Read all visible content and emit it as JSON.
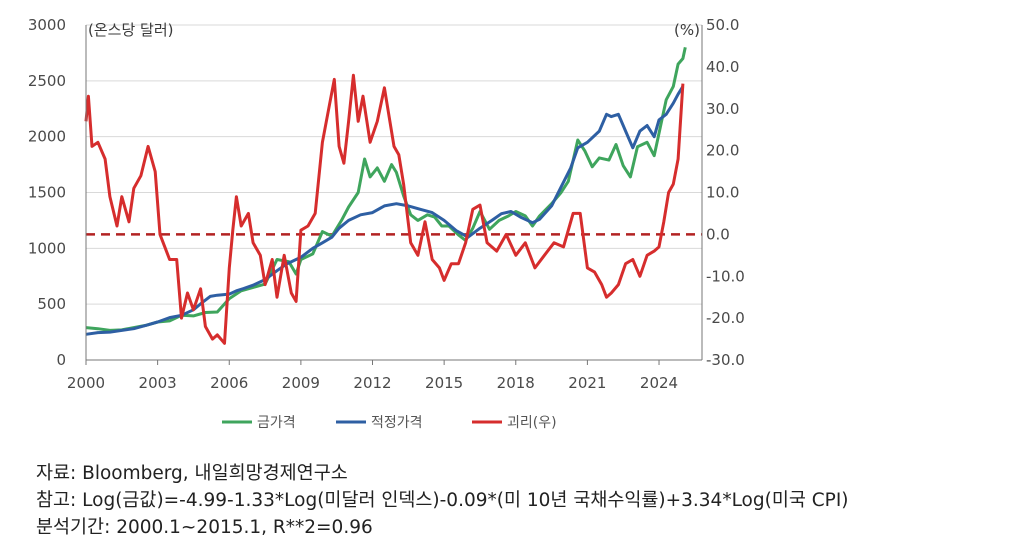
{
  "chart_data": {
    "type": "line",
    "title": "",
    "y_unit_left": "(온스당 달러)",
    "y_unit_right": "(%)",
    "x_ticks": [
      "2000",
      "2003",
      "2006",
      "2009",
      "2012",
      "2015",
      "2018",
      "2021",
      "2024"
    ],
    "y_left_ticks": [
      "0",
      "500",
      "1000",
      "1500",
      "2000",
      "2500",
      "3000"
    ],
    "y_right_ticks": [
      "-30.0",
      "-20.0",
      "-10.0",
      "0.0",
      "10.0",
      "20.0",
      "30.0",
      "40.0",
      "50.0"
    ],
    "xlim": [
      2000,
      2025.8
    ],
    "ylim_left": [
      0,
      3000
    ],
    "ylim_right": [
      -30,
      50
    ],
    "grid": "horizontal",
    "legend_position": "bottom",
    "reference_line": {
      "axis": "right",
      "value": 0.0,
      "style": "dashed",
      "color": "#b22222"
    },
    "series": [
      {
        "name": "금가격",
        "axis": "left",
        "color": "#3fa55d",
        "points": [
          [
            2000.0,
            290
          ],
          [
            2000.5,
            280
          ],
          [
            2001.0,
            265
          ],
          [
            2001.5,
            270
          ],
          [
            2002.0,
            290
          ],
          [
            2002.5,
            310
          ],
          [
            2003.0,
            340
          ],
          [
            2003.5,
            350
          ],
          [
            2004.0,
            400
          ],
          [
            2004.5,
            395
          ],
          [
            2005.0,
            425
          ],
          [
            2005.5,
            430
          ],
          [
            2006.0,
            550
          ],
          [
            2006.5,
            620
          ],
          [
            2007.0,
            650
          ],
          [
            2007.5,
            680
          ],
          [
            2008.0,
            900
          ],
          [
            2008.5,
            880
          ],
          [
            2008.8,
            770
          ],
          [
            2009.0,
            900
          ],
          [
            2009.5,
            950
          ],
          [
            2009.9,
            1150
          ],
          [
            2010.3,
            1110
          ],
          [
            2010.7,
            1250
          ],
          [
            2011.0,
            1370
          ],
          [
            2011.4,
            1500
          ],
          [
            2011.67,
            1800
          ],
          [
            2011.9,
            1640
          ],
          [
            2012.2,
            1720
          ],
          [
            2012.5,
            1600
          ],
          [
            2012.8,
            1750
          ],
          [
            2013.0,
            1680
          ],
          [
            2013.3,
            1470
          ],
          [
            2013.6,
            1300
          ],
          [
            2013.9,
            1250
          ],
          [
            2014.3,
            1300
          ],
          [
            2014.6,
            1280
          ],
          [
            2014.9,
            1200
          ],
          [
            2015.2,
            1200
          ],
          [
            2015.6,
            1120
          ],
          [
            2015.9,
            1070
          ],
          [
            2016.2,
            1180
          ],
          [
            2016.5,
            1330
          ],
          [
            2016.9,
            1170
          ],
          [
            2017.3,
            1250
          ],
          [
            2017.7,
            1290
          ],
          [
            2018.0,
            1330
          ],
          [
            2018.4,
            1290
          ],
          [
            2018.7,
            1200
          ],
          [
            2019.0,
            1290
          ],
          [
            2019.5,
            1400
          ],
          [
            2019.9,
            1500
          ],
          [
            2020.2,
            1600
          ],
          [
            2020.6,
            1970
          ],
          [
            2020.9,
            1870
          ],
          [
            2021.2,
            1730
          ],
          [
            2021.5,
            1810
          ],
          [
            2021.9,
            1790
          ],
          [
            2022.2,
            1930
          ],
          [
            2022.5,
            1740
          ],
          [
            2022.8,
            1640
          ],
          [
            2023.1,
            1910
          ],
          [
            2023.5,
            1950
          ],
          [
            2023.8,
            1830
          ],
          [
            2024.0,
            2030
          ],
          [
            2024.3,
            2330
          ],
          [
            2024.6,
            2450
          ],
          [
            2024.8,
            2650
          ],
          [
            2025.0,
            2700
          ],
          [
            2025.1,
            2800
          ]
        ]
      },
      {
        "name": "적정가격",
        "axis": "left",
        "color": "#2e5fa3",
        "points": [
          [
            2000.0,
            230
          ],
          [
            2000.5,
            245
          ],
          [
            2001.0,
            250
          ],
          [
            2001.5,
            265
          ],
          [
            2002.0,
            280
          ],
          [
            2002.5,
            310
          ],
          [
            2003.0,
            340
          ],
          [
            2003.5,
            380
          ],
          [
            2004.0,
            400
          ],
          [
            2004.5,
            450
          ],
          [
            2004.9,
            520
          ],
          [
            2005.2,
            570
          ],
          [
            2005.5,
            580
          ],
          [
            2006.0,
            590
          ],
          [
            2006.3,
            620
          ],
          [
            2006.6,
            640
          ],
          [
            2007.0,
            670
          ],
          [
            2007.5,
            720
          ],
          [
            2008.0,
            800
          ],
          [
            2008.4,
            860
          ],
          [
            2008.8,
            900
          ],
          [
            2009.0,
            920
          ],
          [
            2009.5,
            1000
          ],
          [
            2009.9,
            1050
          ],
          [
            2010.3,
            1100
          ],
          [
            2010.6,
            1180
          ],
          [
            2011.0,
            1250
          ],
          [
            2011.5,
            1300
          ],
          [
            2012.0,
            1320
          ],
          [
            2012.5,
            1380
          ],
          [
            2013.0,
            1400
          ],
          [
            2013.5,
            1380
          ],
          [
            2014.0,
            1350
          ],
          [
            2014.5,
            1320
          ],
          [
            2015.0,
            1250
          ],
          [
            2015.5,
            1160
          ],
          [
            2016.0,
            1100
          ],
          [
            2016.5,
            1180
          ],
          [
            2017.0,
            1250
          ],
          [
            2017.4,
            1310
          ],
          [
            2017.8,
            1330
          ],
          [
            2018.2,
            1280
          ],
          [
            2018.7,
            1230
          ],
          [
            2019.0,
            1260
          ],
          [
            2019.5,
            1380
          ],
          [
            2019.9,
            1550
          ],
          [
            2020.3,
            1720
          ],
          [
            2020.6,
            1900
          ],
          [
            2021.0,
            1950
          ],
          [
            2021.5,
            2050
          ],
          [
            2021.8,
            2200
          ],
          [
            2022.0,
            2180
          ],
          [
            2022.3,
            2200
          ],
          [
            2022.6,
            2050
          ],
          [
            2022.9,
            1900
          ],
          [
            2023.2,
            2050
          ],
          [
            2023.5,
            2100
          ],
          [
            2023.8,
            2000
          ],
          [
            2024.0,
            2150
          ],
          [
            2024.3,
            2200
          ],
          [
            2024.6,
            2300
          ],
          [
            2024.8,
            2380
          ],
          [
            2025.0,
            2450
          ]
        ]
      },
      {
        "name": "괴리(우)",
        "axis": "right",
        "color": "#d62d2d",
        "points": [
          [
            2000.0,
            27
          ],
          [
            2000.1,
            33
          ],
          [
            2000.25,
            21
          ],
          [
            2000.5,
            22
          ],
          [
            2000.8,
            18
          ],
          [
            2001.0,
            9
          ],
          [
            2001.3,
            2
          ],
          [
            2001.5,
            9
          ],
          [
            2001.8,
            3
          ],
          [
            2002.0,
            11
          ],
          [
            2002.3,
            14
          ],
          [
            2002.6,
            21
          ],
          [
            2002.9,
            15
          ],
          [
            2003.1,
            0
          ],
          [
            2003.3,
            -3
          ],
          [
            2003.5,
            -6
          ],
          [
            2003.8,
            -6
          ],
          [
            2004.0,
            -20
          ],
          [
            2004.25,
            -14
          ],
          [
            2004.5,
            -18
          ],
          [
            2004.8,
            -13
          ],
          [
            2005.0,
            -22
          ],
          [
            2005.3,
            -25
          ],
          [
            2005.5,
            -24
          ],
          [
            2005.8,
            -26
          ],
          [
            2006.0,
            -8
          ],
          [
            2006.15,
            1
          ],
          [
            2006.3,
            9
          ],
          [
            2006.5,
            2
          ],
          [
            2006.8,
            5
          ],
          [
            2007.0,
            -2
          ],
          [
            2007.3,
            -5
          ],
          [
            2007.5,
            -12
          ],
          [
            2007.8,
            -6
          ],
          [
            2008.0,
            -15
          ],
          [
            2008.3,
            -5
          ],
          [
            2008.6,
            -14
          ],
          [
            2008.8,
            -16
          ],
          [
            2009.0,
            1
          ],
          [
            2009.3,
            2
          ],
          [
            2009.6,
            5
          ],
          [
            2009.9,
            22
          ],
          [
            2010.2,
            31
          ],
          [
            2010.4,
            37
          ],
          [
            2010.6,
            21
          ],
          [
            2010.8,
            17
          ],
          [
            2011.0,
            27
          ],
          [
            2011.2,
            38
          ],
          [
            2011.4,
            27
          ],
          [
            2011.6,
            33
          ],
          [
            2011.9,
            22
          ],
          [
            2012.2,
            27
          ],
          [
            2012.5,
            35
          ],
          [
            2012.7,
            28
          ],
          [
            2012.9,
            21
          ],
          [
            2013.1,
            19
          ],
          [
            2013.3,
            12
          ],
          [
            2013.6,
            -2
          ],
          [
            2013.9,
            -5
          ],
          [
            2014.2,
            3
          ],
          [
            2014.5,
            -6
          ],
          [
            2014.8,
            -8
          ],
          [
            2015.0,
            -11
          ],
          [
            2015.3,
            -7
          ],
          [
            2015.6,
            -7
          ],
          [
            2015.9,
            -2
          ],
          [
            2016.2,
            6
          ],
          [
            2016.5,
            7
          ],
          [
            2016.8,
            -2
          ],
          [
            2017.2,
            -4
          ],
          [
            2017.6,
            0
          ],
          [
            2018.0,
            -5
          ],
          [
            2018.4,
            -2
          ],
          [
            2018.8,
            -8
          ],
          [
            2019.2,
            -5
          ],
          [
            2019.6,
            -2
          ],
          [
            2020.0,
            -3
          ],
          [
            2020.4,
            5
          ],
          [
            2020.7,
            5
          ],
          [
            2021.0,
            -8
          ],
          [
            2021.3,
            -9
          ],
          [
            2021.6,
            -12
          ],
          [
            2021.8,
            -15
          ],
          [
            2022.0,
            -14
          ],
          [
            2022.3,
            -12
          ],
          [
            2022.6,
            -7
          ],
          [
            2022.9,
            -6
          ],
          [
            2023.2,
            -10
          ],
          [
            2023.5,
            -5
          ],
          [
            2023.8,
            -4
          ],
          [
            2024.0,
            -3
          ],
          [
            2024.2,
            3
          ],
          [
            2024.4,
            10
          ],
          [
            2024.6,
            12
          ],
          [
            2024.8,
            18
          ],
          [
            2025.0,
            36
          ]
        ]
      }
    ]
  },
  "notes": {
    "source": "자료: Bloomberg, 내일희망경제연구소",
    "reference": "참고: Log(금값)=-4.99-1.33*Log(미달러 인덱스)-0.09*(미 10년 국채수익률)+3.34*Log(미국 CPI)",
    "period": "분석기간: 2000.1~2015.1, R**2=0.96"
  }
}
